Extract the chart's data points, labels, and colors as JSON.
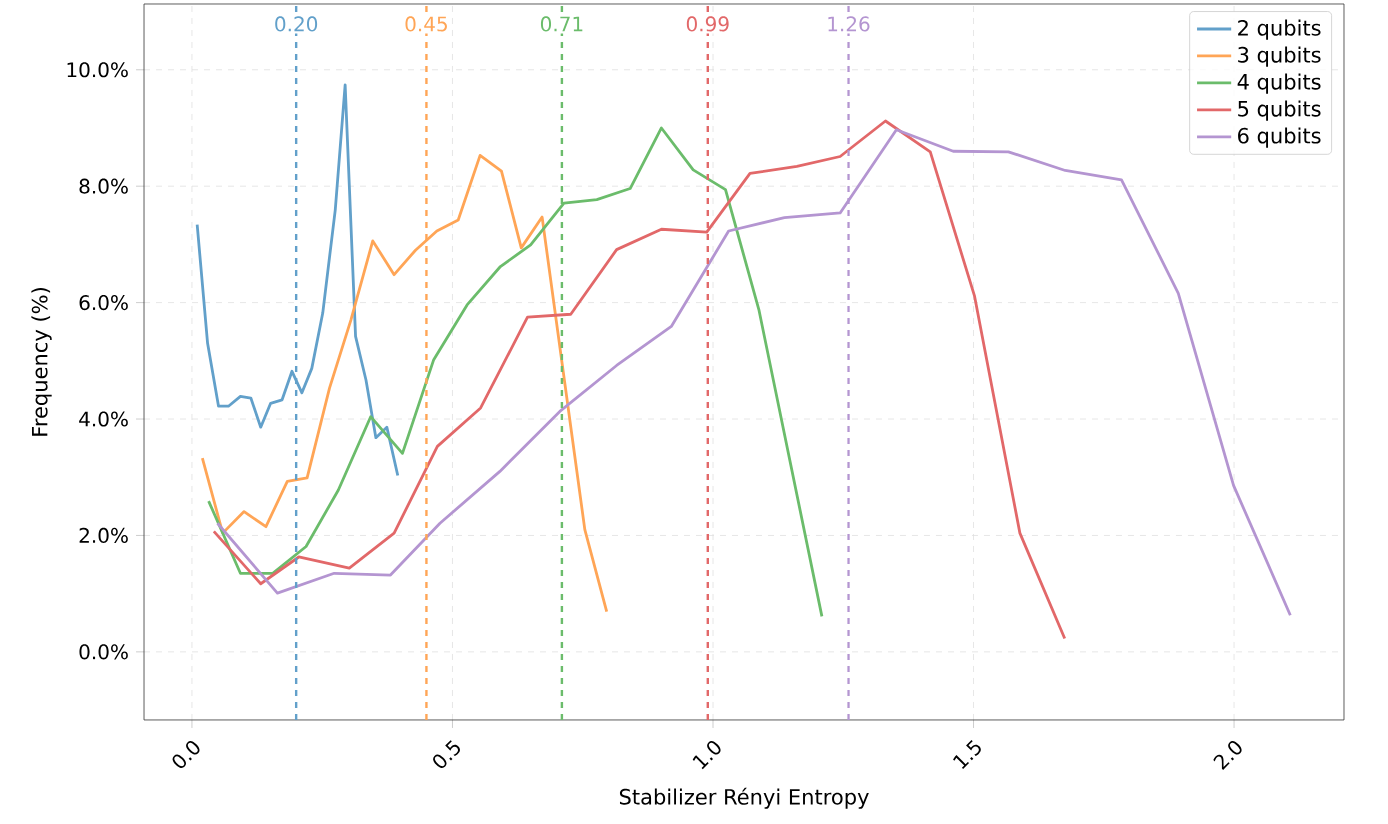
{
  "chart_data": {
    "type": "line",
    "xlabel": "Stabilizer Rényi Entropy",
    "ylabel": "Frequency (%)",
    "xlim": [
      -0.092,
      2.211
    ],
    "ylim": [
      -1.17,
      11.13
    ],
    "xticks": [
      {
        "value": 0,
        "label": "0.0"
      },
      {
        "value": 0.5,
        "label": "0.5"
      },
      {
        "value": 1,
        "label": "1.0"
      },
      {
        "value": 1.5,
        "label": "1.5"
      },
      {
        "value": 2,
        "label": "2.0"
      }
    ],
    "yticks": [
      {
        "value": 0,
        "label": "0.0%"
      },
      {
        "value": 2,
        "label": "2.0%"
      },
      {
        "value": 4,
        "label": "4.0%"
      },
      {
        "value": 6,
        "label": "6.0%"
      },
      {
        "value": 8,
        "label": "8.0%"
      },
      {
        "value": 10,
        "label": "10.0%"
      }
    ],
    "grid": true,
    "legend": "top right",
    "marker": "none",
    "line_style": "solid",
    "series": [
      {
        "name": "2 qubits",
        "color": "#62a0ca",
        "x": [
          0.01,
          0.03,
          0.051,
          0.07,
          0.093,
          0.113,
          0.132,
          0.151,
          0.173,
          0.192,
          0.211,
          0.23,
          0.251,
          0.275,
          0.294,
          0.314,
          0.334,
          0.353,
          0.374,
          0.395
        ],
        "values": [
          7.34,
          5.3,
          4.22,
          4.22,
          4.39,
          4.36,
          3.86,
          4.27,
          4.33,
          4.82,
          4.45,
          4.87,
          5.82,
          7.59,
          9.74,
          5.42,
          4.67,
          3.68,
          3.86,
          3.03
        ]
      },
      {
        "name": "3 qubits",
        "color": "#ffa556",
        "x": [
          0.02,
          0.059,
          0.1,
          0.142,
          0.183,
          0.221,
          0.264,
          0.305,
          0.347,
          0.388,
          0.429,
          0.47,
          0.511,
          0.553,
          0.594,
          0.632,
          0.672,
          0.754,
          0.796
        ],
        "values": [
          3.33,
          2.04,
          2.41,
          2.15,
          2.93,
          2.99,
          4.53,
          5.7,
          7.06,
          6.48,
          6.9,
          7.23,
          7.42,
          8.53,
          8.26,
          6.94,
          7.47,
          2.1,
          0.69
        ]
      },
      {
        "name": "4 qubits",
        "color": "#6bbc6b",
        "x": [
          0.032,
          0.093,
          0.155,
          0.219,
          0.281,
          0.343,
          0.404,
          0.464,
          0.528,
          0.592,
          0.65,
          0.714,
          0.777,
          0.841,
          0.901,
          0.962,
          1.024,
          1.088,
          1.209
        ],
        "values": [
          2.59,
          1.35,
          1.35,
          1.81,
          2.78,
          4.04,
          3.41,
          5.02,
          5.96,
          6.62,
          6.99,
          7.71,
          7.77,
          7.96,
          9.0,
          8.28,
          7.94,
          5.88,
          0.61
        ]
      },
      {
        "name": "5 qubits",
        "color": "#e26869",
        "x": [
          0.042,
          0.132,
          0.205,
          0.302,
          0.388,
          0.471,
          0.554,
          0.644,
          0.727,
          0.815,
          0.901,
          0.988,
          1.071,
          1.161,
          1.244,
          1.331,
          1.417,
          1.502,
          1.589,
          1.675
        ],
        "values": [
          2.07,
          1.17,
          1.63,
          1.44,
          2.04,
          3.53,
          4.19,
          5.75,
          5.8,
          6.91,
          7.26,
          7.21,
          8.22,
          8.34,
          8.51,
          9.12,
          8.59,
          6.11,
          2.04,
          0.23
        ]
      },
      {
        "name": "6 qubits",
        "color": "#b495d1",
        "x": [
          0.049,
          0.164,
          0.273,
          0.381,
          0.476,
          0.591,
          0.706,
          0.815,
          0.92,
          1.03,
          1.137,
          1.244,
          1.352,
          1.461,
          1.567,
          1.676,
          1.784,
          1.893,
          1.999,
          2.108
        ],
        "values": [
          2.21,
          1.01,
          1.35,
          1.32,
          2.21,
          3.1,
          4.13,
          4.92,
          5.59,
          7.23,
          7.46,
          7.54,
          8.97,
          8.6,
          8.59,
          8.27,
          8.11,
          6.16,
          2.86,
          0.63
        ]
      }
    ],
    "ref_lines": [
      {
        "axis": "x",
        "value": 0.2,
        "label": "0.20",
        "color": "#62a0ca",
        "line_style": "dashed"
      },
      {
        "axis": "x",
        "value": 0.45,
        "label": "0.45",
        "color": "#ffa556",
        "line_style": "dashed"
      },
      {
        "axis": "x",
        "value": 0.71,
        "label": "0.71",
        "color": "#6bbc6b",
        "line_style": "dashed"
      },
      {
        "axis": "x",
        "value": 0.99,
        "label": "0.99",
        "color": "#e26869",
        "line_style": "dashed"
      },
      {
        "axis": "x",
        "value": 1.26,
        "label": "1.26",
        "color": "#b495d1",
        "line_style": "dashed"
      }
    ]
  }
}
